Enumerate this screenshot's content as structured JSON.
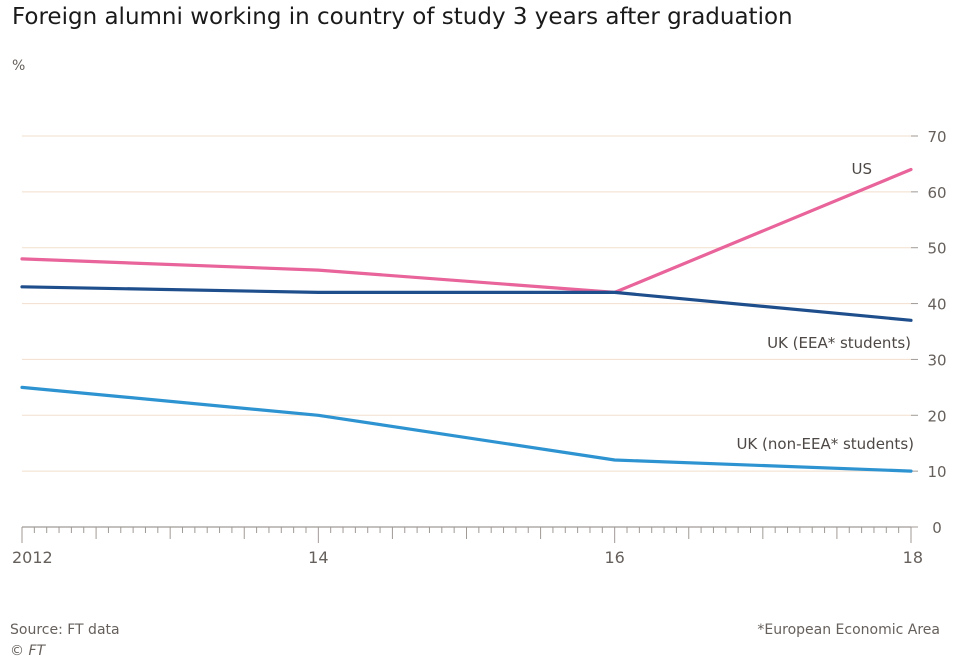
{
  "page": {
    "title": "Foreign alumni working in country of study 3 years after graduation",
    "unit": "%",
    "source": "Source: FT data",
    "copyright": "© FT",
    "footnote": "*European Economic Area"
  },
  "chart_data": {
    "type": "line",
    "title": "Foreign alumni working in country of study 3 years after graduation",
    "ylabel": "%",
    "xlabel": "",
    "x": [
      2012,
      2014,
      2016,
      2018
    ],
    "xlim": [
      2012,
      2018
    ],
    "ylim": [
      0,
      70
    ],
    "yticks": [
      0,
      10,
      20,
      30,
      40,
      50,
      60,
      70
    ],
    "xtick_labels": [
      {
        "x": 2012,
        "label": "2012"
      },
      {
        "x": 2014,
        "label": "14"
      },
      {
        "x": 2016,
        "label": "16"
      },
      {
        "x": 2018,
        "label": "18"
      }
    ],
    "series": [
      {
        "name": "US",
        "color": "#e8649a",
        "values": [
          48,
          46,
          42,
          64
        ]
      },
      {
        "name": "UK (EEA* students)",
        "color": "#1f4e8c",
        "values": [
          43,
          42,
          42,
          37
        ]
      },
      {
        "name": "UK (non-EEA* students)",
        "color": "#2e93d1",
        "values": [
          25,
          20,
          12,
          10
        ]
      }
    ],
    "grid": true,
    "gridline_color": "#f2dfce",
    "axis_color": "#a09a96"
  }
}
